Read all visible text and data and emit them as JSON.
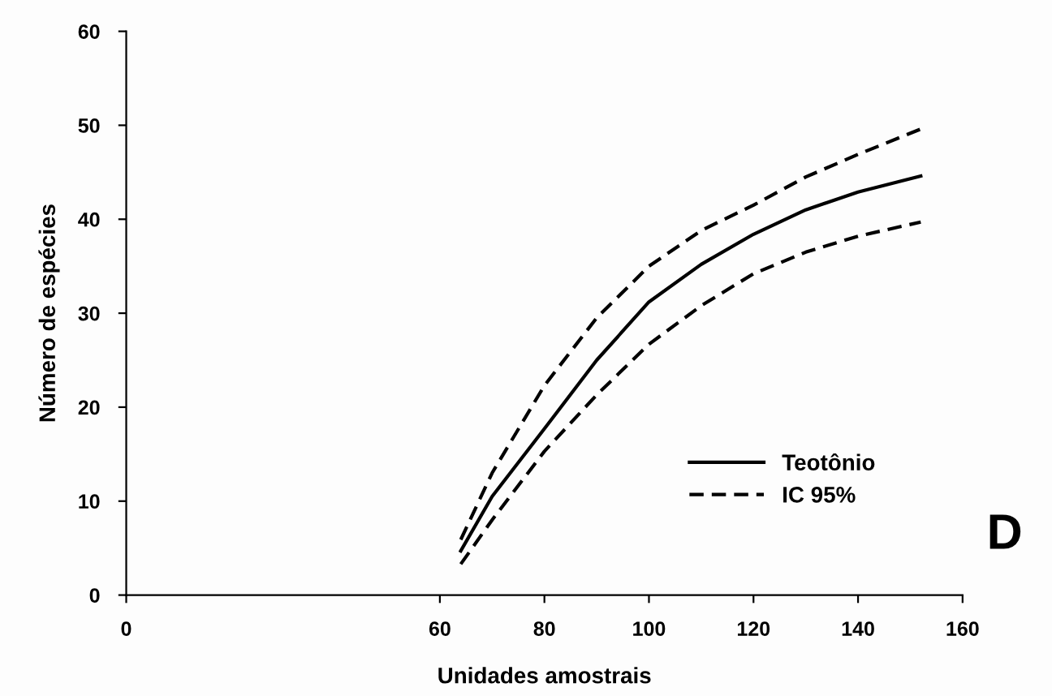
{
  "chart_data": {
    "type": "line",
    "xlabel": "Unidades amostrais",
    "ylabel": "Número de espécies",
    "x": [
      64,
      70,
      80,
      90,
      100,
      110,
      120,
      130,
      140,
      152
    ],
    "series": [
      {
        "name": "Teotônio",
        "color": "#000000",
        "line_style": "solid",
        "values": [
          4.7,
          10.5,
          17.7,
          25,
          31.2,
          35.2,
          38.4,
          41,
          42.9,
          44.6
        ]
      },
      {
        "name": "IC 95%",
        "color": "#000000",
        "line_style": "dashed",
        "values": [
          5.9,
          13,
          22.3,
          29.5,
          35,
          38.8,
          41.5,
          44.5,
          46.9,
          49.6
        ]
      },
      {
        "color": "#000000",
        "line_style": "dashed",
        "values": [
          3.3,
          8,
          15.3,
          21.3,
          26.7,
          30.8,
          34.2,
          36.5,
          38.2,
          39.7
        ]
      }
    ],
    "xlim": [
      0,
      160
    ],
    "xticks": [
      0,
      60,
      80,
      100,
      120,
      140,
      160
    ],
    "ylim": [
      0,
      60
    ],
    "yticks": [
      0,
      10,
      20,
      30,
      40,
      50,
      60
    ],
    "grid": false,
    "legend": "bottom right",
    "marker": "none",
    "annotations": [
      "D"
    ]
  }
}
